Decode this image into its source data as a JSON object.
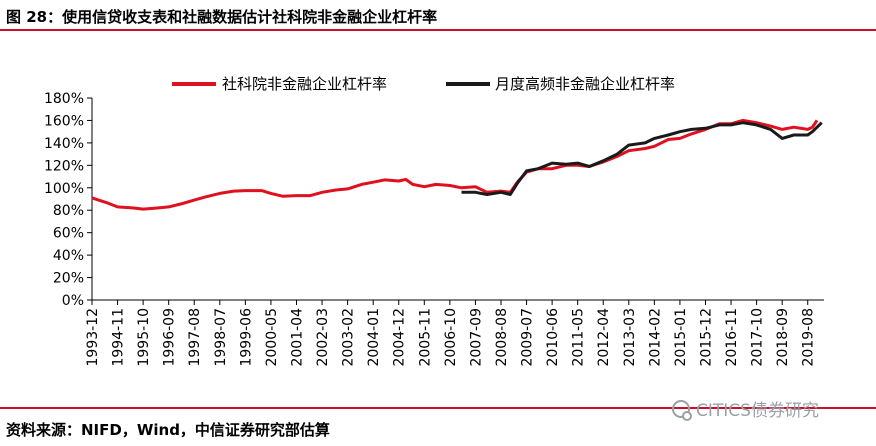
{
  "header": {
    "title": "图 28：使用信贷收支表和社融数据估计社科院非金融企业杠杆率"
  },
  "footer": {
    "source": "资料来源：NIFD，Wind，中信证券研究部估算",
    "watermark": "CITICS债券研究"
  },
  "colors": {
    "accent_rule": "#c8102e",
    "series_cass": "#e0101e",
    "series_monthly": "#1a1a1a"
  },
  "chart_data": {
    "type": "line",
    "title": "",
    "xlabel": "",
    "ylabel": "",
    "ylim": [
      0,
      180
    ],
    "y_ticks": [
      "0%",
      "20%",
      "40%",
      "60%",
      "80%",
      "100%",
      "120%",
      "140%",
      "160%",
      "180%"
    ],
    "x_ticks": [
      "1993-12",
      "1994-11",
      "1995-10",
      "1996-09",
      "1997-08",
      "1998-07",
      "1999-06",
      "2000-05",
      "2001-04",
      "2002-03",
      "2003-02",
      "2004-01",
      "2004-12",
      "2005-11",
      "2006-10",
      "2007-09",
      "2008-08",
      "2009-07",
      "2010-06",
      "2011-05",
      "2012-04",
      "2013-03",
      "2014-02",
      "2015-01",
      "2015-12",
      "2016-11",
      "2017-10",
      "2018-09",
      "2019-08"
    ],
    "legend_position": "top",
    "grid": false,
    "series": [
      {
        "name": "社科院非金融企业杠杆率",
        "points": [
          [
            "1993-12",
            91
          ],
          [
            "1994-06",
            87
          ],
          [
            "1994-11",
            83
          ],
          [
            "1995-06",
            82
          ],
          [
            "1995-10",
            81
          ],
          [
            "1996-04",
            82
          ],
          [
            "1996-09",
            83
          ],
          [
            "1997-03",
            86
          ],
          [
            "1997-08",
            89
          ],
          [
            "1998-01",
            92
          ],
          [
            "1998-07",
            95
          ],
          [
            "1999-01",
            97
          ],
          [
            "1999-06",
            97.5
          ],
          [
            "2000-01",
            97.5
          ],
          [
            "2000-05",
            95
          ],
          [
            "2000-10",
            92.5
          ],
          [
            "2001-04",
            93
          ],
          [
            "2001-10",
            93
          ],
          [
            "2002-03",
            96
          ],
          [
            "2002-09",
            98
          ],
          [
            "2003-02",
            99
          ],
          [
            "2003-08",
            103
          ],
          [
            "2004-01",
            105
          ],
          [
            "2004-06",
            107
          ],
          [
            "2004-12",
            106
          ],
          [
            "2005-03",
            107.5
          ],
          [
            "2005-06",
            103
          ],
          [
            "2005-11",
            101
          ],
          [
            "2006-04",
            103
          ],
          [
            "2006-10",
            102
          ],
          [
            "2007-03",
            100
          ],
          [
            "2007-09",
            101
          ],
          [
            "2008-02",
            96
          ],
          [
            "2008-08",
            97
          ],
          [
            "2008-12",
            96
          ],
          [
            "2009-03",
            105
          ],
          [
            "2009-07",
            114
          ],
          [
            "2009-12",
            117
          ],
          [
            "2010-06",
            117
          ],
          [
            "2010-12",
            120
          ],
          [
            "2011-05",
            120
          ],
          [
            "2011-10",
            119
          ],
          [
            "2012-04",
            123
          ],
          [
            "2012-10",
            128
          ],
          [
            "2013-03",
            133
          ],
          [
            "2013-10",
            135
          ],
          [
            "2014-02",
            137
          ],
          [
            "2014-08",
            143
          ],
          [
            "2015-01",
            144
          ],
          [
            "2015-06",
            148
          ],
          [
            "2015-12",
            152
          ],
          [
            "2016-06",
            157
          ],
          [
            "2016-11",
            157
          ],
          [
            "2017-04",
            160
          ],
          [
            "2017-10",
            158
          ],
          [
            "2018-04",
            155
          ],
          [
            "2018-09",
            152
          ],
          [
            "2019-02",
            154
          ],
          [
            "2019-08",
            152
          ],
          [
            "2019-10",
            154
          ],
          [
            "2019-12",
            160
          ]
        ]
      },
      {
        "name": "月度高频非金融企业杠杆率",
        "points": [
          [
            "2007-03",
            96
          ],
          [
            "2007-09",
            96
          ],
          [
            "2008-02",
            94
          ],
          [
            "2008-08",
            96
          ],
          [
            "2008-12",
            94
          ],
          [
            "2009-03",
            104
          ],
          [
            "2009-07",
            115
          ],
          [
            "2009-12",
            117
          ],
          [
            "2010-06",
            122
          ],
          [
            "2010-12",
            121
          ],
          [
            "2011-05",
            122
          ],
          [
            "2011-10",
            119
          ],
          [
            "2012-04",
            124
          ],
          [
            "2012-10",
            130
          ],
          [
            "2013-03",
            138
          ],
          [
            "2013-10",
            140
          ],
          [
            "2014-02",
            144
          ],
          [
            "2014-08",
            147
          ],
          [
            "2015-01",
            150
          ],
          [
            "2015-06",
            152
          ],
          [
            "2015-12",
            153
          ],
          [
            "2016-06",
            156
          ],
          [
            "2016-11",
            156
          ],
          [
            "2017-04",
            158
          ],
          [
            "2017-10",
            156
          ],
          [
            "2018-04",
            152
          ],
          [
            "2018-09",
            144
          ],
          [
            "2019-02",
            147
          ],
          [
            "2019-08",
            147
          ],
          [
            "2019-10",
            150
          ],
          [
            "2019-12",
            154
          ],
          [
            "2020-02",
            158
          ]
        ]
      }
    ]
  }
}
